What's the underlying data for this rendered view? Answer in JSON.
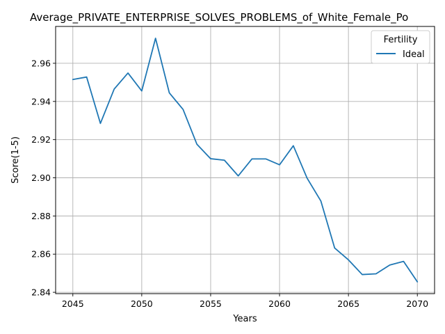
{
  "chart_data": {
    "type": "line",
    "title": "Average_PRIVATE_ENTERPRISE_SOLVES_PROBLEMS_of_White_Female_Po",
    "xlabel": "Years",
    "ylabel": "Score(1-5)",
    "xlim": [
      2043.75,
      2071.25
    ],
    "ylim": [
      2.8393,
      2.9793
    ],
    "x_ticks": [
      2045,
      2050,
      2055,
      2060,
      2065,
      2070
    ],
    "y_ticks": [
      2.84,
      2.86,
      2.88,
      2.9,
      2.92,
      2.94,
      2.96
    ],
    "y_tick_labels": [
      "2.84",
      "2.86",
      "2.88",
      "2.90",
      "2.92",
      "2.94",
      "2.96"
    ],
    "grid": true,
    "legend": {
      "title": "Fertility",
      "position": "top-right"
    },
    "series": [
      {
        "name": "Ideal",
        "color": "#1f77b4",
        "x": [
          2045,
          2046,
          2047,
          2048,
          2049,
          2050,
          2051,
          2052,
          2053,
          2054,
          2055,
          2056,
          2057,
          2058,
          2059,
          2060,
          2061,
          2062,
          2063,
          2064,
          2065,
          2066,
          2067,
          2068,
          2069,
          2070
        ],
        "values": [
          2.9515,
          2.9528,
          2.9285,
          2.9465,
          2.9549,
          2.9455,
          2.9731,
          2.9445,
          2.9358,
          2.9176,
          2.91,
          2.9092,
          2.901,
          2.9099,
          2.9099,
          2.9068,
          2.9168,
          2.8998,
          2.8878,
          2.8632,
          2.857,
          2.8493,
          2.8497,
          2.8543,
          2.8562,
          2.8455
        ]
      }
    ]
  }
}
